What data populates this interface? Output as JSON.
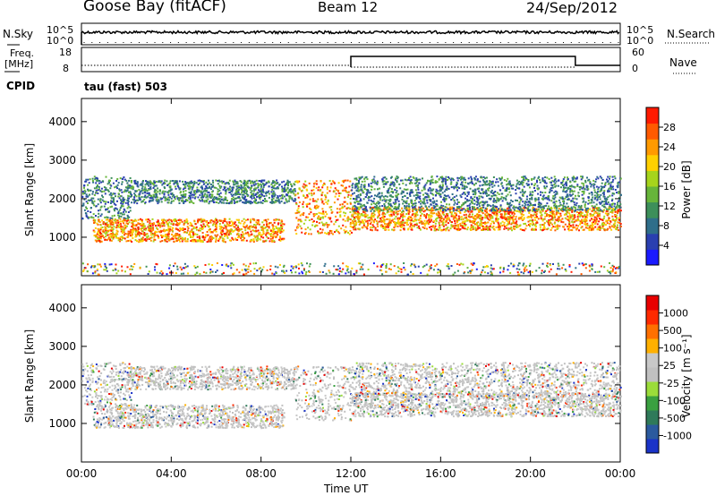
{
  "header": {
    "station": "Goose Bay (fitACF)",
    "beam": "Beam 12",
    "date": "24/Sep/2012"
  },
  "top_panels": {
    "nsky_label": "N.Sky",
    "nsearch_label": "N.Search",
    "nsky_ticks": [
      "10^5",
      "10^0"
    ],
    "nsearch_ticks": [
      "10^5",
      "10^0"
    ],
    "freq_label_1": "Freq.",
    "freq_label_2": "[MHz]",
    "freq_ticks": [
      "18",
      "8"
    ],
    "nave_label": "Nave",
    "nave_ticks": [
      "60",
      "0"
    ],
    "cpid_label": "CPID",
    "cpid_value": "tau (fast) 503"
  },
  "colors": {
    "power_scale": [
      "#1a1aff",
      "#2a3fb0",
      "#2f6e8a",
      "#3d8f5a",
      "#67b53a",
      "#a6d41c",
      "#ffd000",
      "#ff9a00",
      "#ff5a00",
      "#ff1a00"
    ],
    "velocity_scale": [
      "#1a33c8",
      "#2b5a9e",
      "#2f7a5a",
      "#3aa040",
      "#9bdc3a",
      "#c0c0c0",
      "#c8c8c8",
      "#ffb000",
      "#ff7000",
      "#ff2a00",
      "#e80000"
    ]
  },
  "chart_data": [
    {
      "type": "heatmap",
      "name": "power",
      "xlabel": "",
      "ylabel": "Slant Range [km]",
      "xlim": [
        0,
        24
      ],
      "ylim": [
        0,
        4600
      ],
      "y_ticks": [
        "1000",
        "2000",
        "3000",
        "4000"
      ],
      "x_ticks": [],
      "colorbar": {
        "label": "Power [dB]",
        "ticks": [
          "4",
          "8",
          "12",
          "16",
          "20",
          "24",
          "28"
        ],
        "range": [
          0,
          30
        ]
      },
      "bands": [
        {
          "start": 0,
          "end": 2.2,
          "low": 1500,
          "high": 2600,
          "power": "weak"
        },
        {
          "start": 2,
          "end": 9.5,
          "low": 1900,
          "high": 2500,
          "power": "weak"
        },
        {
          "start": 0.5,
          "end": 9,
          "low": 900,
          "high": 1500,
          "power": "strong"
        },
        {
          "start": 9.5,
          "end": 12,
          "low": 1100,
          "high": 2500,
          "power": "strong"
        },
        {
          "start": 12,
          "end": 24,
          "low": 1200,
          "high": 1800,
          "power": "strong"
        },
        {
          "start": 12,
          "end": 24,
          "low": 1700,
          "high": 2600,
          "power": "weak"
        }
      ]
    },
    {
      "type": "heatmap",
      "name": "velocity",
      "xlabel": "Time UT",
      "ylabel": "Slant Range [km]",
      "xlim": [
        0,
        24
      ],
      "ylim": [
        0,
        4600
      ],
      "y_ticks": [
        "1000",
        "2000",
        "3000",
        "4000"
      ],
      "x_ticks": [
        "00:00",
        "04:00",
        "08:00",
        "12:00",
        "16:00",
        "20:00",
        "00:00"
      ],
      "colorbar": {
        "label": "Velocity [m s⁻¹]",
        "ticks": [
          "1000",
          "500",
          "100",
          "25",
          "-25",
          "-100",
          "-500",
          "-1000"
        ]
      }
    }
  ]
}
